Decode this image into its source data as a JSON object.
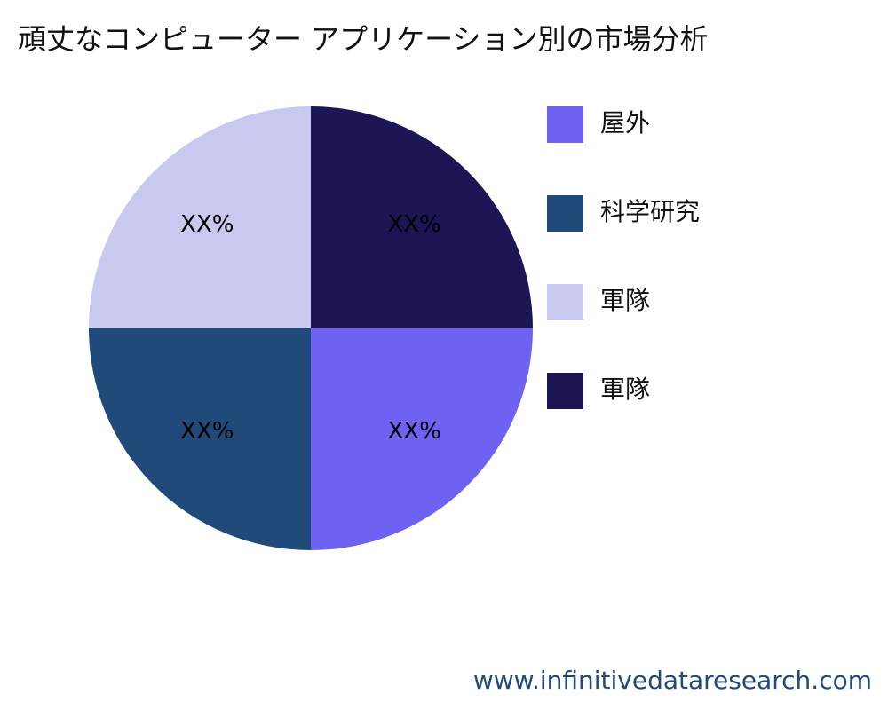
{
  "chart_data": {
    "type": "pie",
    "title": "頑丈なコンピューター アプリケーション別の市場分析",
    "categories": [
      "屋外",
      "科学研究",
      "軍隊",
      "軍隊"
    ],
    "values": [
      25,
      25,
      25,
      25
    ],
    "value_labels": [
      "XX%",
      "XX%",
      "XX%",
      "XX%"
    ],
    "colors": [
      "#6e62f2",
      "#1f4a7a",
      "#c9c9f0",
      "#1c1654"
    ],
    "legend": "right"
  },
  "watermark": "www.infinitivedataresearch.com"
}
